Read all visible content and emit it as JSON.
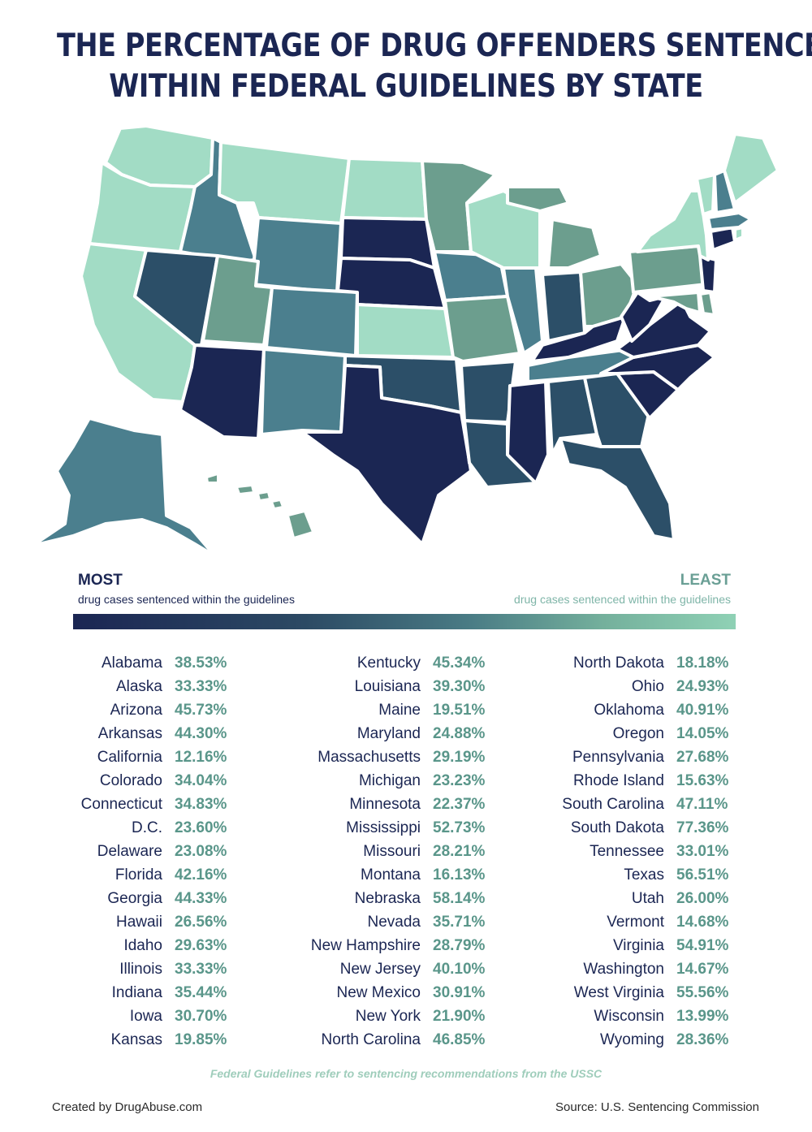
{
  "title_lines": [
    "THE PERCENTAGE OF DRUG OFFENDERS SENTENCED",
    "WITHIN FEDERAL GUIDELINES BY STATE"
  ],
  "legend": {
    "most_label": "MOST",
    "most_sub": "drug cases sentenced within the guidelines",
    "least_label": "LEAST",
    "least_sub": "drug cases sentenced within the guidelines"
  },
  "colors": {
    "darkest": "#1b2653",
    "dark": "#2c4f68",
    "mid": "#4b7f8e",
    "light": "#6c9e8e",
    "lightest": "#a2dcc5",
    "title": "#1b2653",
    "value": "#5a968a"
  },
  "chart_data": {
    "type": "table",
    "title": "THE PERCENTAGE OF DRUG OFFENDERS SENTENCED WITHIN FEDERAL GUIDELINES BY STATE",
    "unit": "%",
    "columns": [
      [
        {
          "name": "Alabama",
          "value": "38.53%"
        },
        {
          "name": "Alaska",
          "value": "33.33%"
        },
        {
          "name": "Arizona",
          "value": "45.73%"
        },
        {
          "name": "Arkansas",
          "value": "44.30%"
        },
        {
          "name": "California",
          "value": "12.16%"
        },
        {
          "name": "Colorado",
          "value": "34.04%"
        },
        {
          "name": "Connecticut",
          "value": "34.83%"
        },
        {
          "name": "D.C.",
          "value": "23.60%"
        },
        {
          "name": "Delaware",
          "value": "23.08%"
        },
        {
          "name": "Florida",
          "value": "42.16%"
        },
        {
          "name": "Georgia",
          "value": "44.33%"
        },
        {
          "name": "Hawaii",
          "value": "26.56%"
        },
        {
          "name": "Idaho",
          "value": "29.63%"
        },
        {
          "name": "Illinois",
          "value": "33.33%"
        },
        {
          "name": "Indiana",
          "value": "35.44%"
        },
        {
          "name": "Iowa",
          "value": "30.70%"
        },
        {
          "name": "Kansas",
          "value": "19.85%"
        }
      ],
      [
        {
          "name": "Kentucky",
          "value": "45.34%"
        },
        {
          "name": "Louisiana",
          "value": "39.30%"
        },
        {
          "name": "Maine",
          "value": "19.51%"
        },
        {
          "name": "Maryland",
          "value": "24.88%"
        },
        {
          "name": "Massachusetts",
          "value": "29.19%"
        },
        {
          "name": "Michigan",
          "value": "23.23%"
        },
        {
          "name": "Minnesota",
          "value": "22.37%"
        },
        {
          "name": "Mississippi",
          "value": "52.73%"
        },
        {
          "name": "Missouri",
          "value": "28.21%"
        },
        {
          "name": "Montana",
          "value": "16.13%"
        },
        {
          "name": "Nebraska",
          "value": "58.14%"
        },
        {
          "name": "Nevada",
          "value": "35.71%"
        },
        {
          "name": "New Hampshire",
          "value": "28.79%"
        },
        {
          "name": "New Jersey",
          "value": "40.10%"
        },
        {
          "name": "New Mexico",
          "value": "30.91%"
        },
        {
          "name": "New York",
          "value": "21.90%"
        },
        {
          "name": "North Carolina",
          "value": "46.85%"
        }
      ],
      [
        {
          "name": "North Dakota",
          "value": "18.18%"
        },
        {
          "name": "Ohio",
          "value": "24.93%"
        },
        {
          "name": "Oklahoma",
          "value": "40.91%"
        },
        {
          "name": "Oregon",
          "value": "14.05%"
        },
        {
          "name": "Pennsylvania",
          "value": "27.68%"
        },
        {
          "name": "Rhode Island",
          "value": "15.63%"
        },
        {
          "name": "South Carolina",
          "value": "47.11%"
        },
        {
          "name": "South Dakota",
          "value": "77.36%"
        },
        {
          "name": "Tennessee",
          "value": "33.01%"
        },
        {
          "name": "Texas",
          "value": "56.51%"
        },
        {
          "name": "Utah",
          "value": "26.00%"
        },
        {
          "name": "Vermont",
          "value": "14.68%"
        },
        {
          "name": "Virginia",
          "value": "54.91%"
        },
        {
          "name": "Washington",
          "value": "14.67%"
        },
        {
          "name": "West Virginia",
          "value": "55.56%"
        },
        {
          "name": "Wisconsin",
          "value": "13.99%"
        },
        {
          "name": "Wyoming",
          "value": "28.36%"
        }
      ]
    ]
  },
  "footnote": "Federal Guidelines refer to sentencing recommendations from the USSC",
  "credit": "Created by DrugAbuse.com",
  "source": "Source: U.S. Sentencing Commission"
}
